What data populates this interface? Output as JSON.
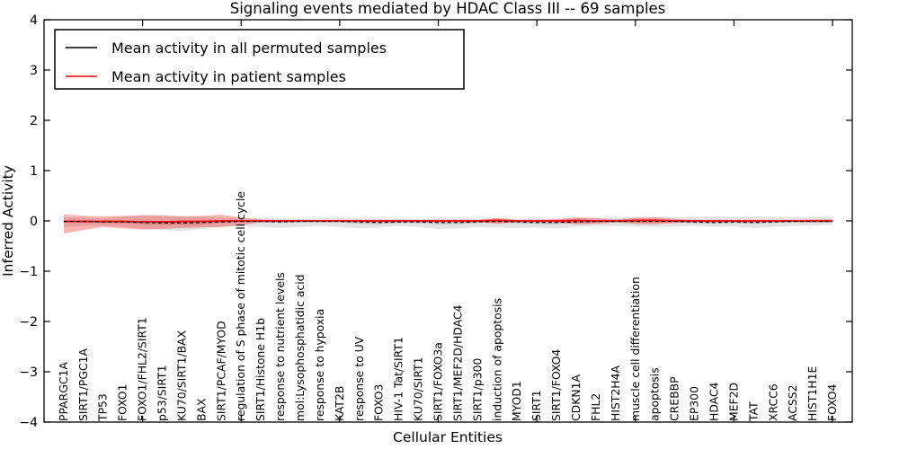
{
  "figure": {
    "title": "Signaling events mediated by HDAC Class III -- 69 samples",
    "xlabel": "Cellular Entities",
    "ylabel": "Inferred Activity"
  },
  "chart_data": {
    "type": "line",
    "title": "Signaling events mediated by HDAC Class III -- 69 samples",
    "xlabel": "Cellular Entities",
    "ylabel": "Inferred Activity",
    "ylim": [
      -4,
      4
    ],
    "grid": false,
    "legend_position": "upper left",
    "yticks": [
      {
        "v": 4,
        "label": "4"
      },
      {
        "v": 3,
        "label": "3"
      },
      {
        "v": 2,
        "label": "2"
      },
      {
        "v": 1,
        "label": "1"
      },
      {
        "v": 0,
        "label": "0"
      },
      {
        "v": -1,
        "label": "−1"
      },
      {
        "v": -2,
        "label": "−2"
      },
      {
        "v": -3,
        "label": "−3"
      },
      {
        "v": -4,
        "label": "−4"
      }
    ],
    "xticks": [
      5,
      10,
      15,
      20,
      25,
      30,
      35,
      40
    ],
    "categories": [
      "PPARGC1A",
      "SIRT1/PGC1A",
      "TP53",
      "FOXO1",
      "FOXO1/FHL2/SIRT1",
      "p53/SIRT1",
      "KU70/SIRT1/BAX",
      "BAX",
      "SIRT1/PCAF/MYOD",
      "regulation of S phase of mitotic cell cycle",
      "SIRT1/Histone H1b",
      "response to nutrient levels",
      "mol:Lysophosphatidic acid",
      "response to hypoxia",
      "KAT2B",
      "response to UV",
      "FOXO3",
      "HIV-1 Tat/SIRT1",
      "KU70/SIRT1",
      "SIRT1/FOXO3a",
      "SIRT1/MEF2D/HDAC4",
      "SIRT1/p300",
      "induction of apoptosis",
      "MYOD1",
      "SIRT1",
      "SIRT1/FOXO4",
      "CDKN1A",
      "FHL2",
      "HIST2H4A",
      "muscle cell differentiation",
      "apoptosis",
      "CREBBP",
      "EP300",
      "HDAC4",
      "MEF2D",
      "TAT",
      "XRCC6",
      "ACSS2",
      "HIST1H1E",
      "FOXO4"
    ],
    "series": [
      {
        "name": "Mean activity in all permuted samples",
        "color": "#000000",
        "style": "dashed",
        "width": 1.2,
        "values": [
          -0.01,
          -0.01,
          -0.02,
          -0.02,
          -0.03,
          -0.04,
          -0.04,
          -0.03,
          -0.02,
          -0.01,
          -0.01,
          -0.02,
          -0.01,
          -0.01,
          -0.01,
          -0.02,
          -0.03,
          -0.02,
          -0.02,
          -0.03,
          -0.03,
          -0.02,
          -0.01,
          -0.02,
          -0.03,
          -0.03,
          -0.02,
          -0.01,
          -0.01,
          -0.01,
          -0.01,
          -0.01,
          -0.02,
          -0.03,
          -0.02,
          -0.03,
          -0.02,
          -0.01,
          -0.01,
          -0.01
        ]
      },
      {
        "name": "Mean activity in patient samples",
        "color": "#ff0000",
        "style": "solid",
        "width": 1.8,
        "values": [
          -0.01,
          -0.01,
          -0.01,
          -0.01,
          -0.02,
          -0.02,
          -0.01,
          -0.01,
          0,
          0,
          0,
          0,
          0,
          0,
          0,
          0,
          0,
          0,
          0,
          0,
          0,
          0,
          0.01,
          0,
          0,
          0,
          0.01,
          0,
          0,
          0.01,
          0.01,
          0,
          0,
          0,
          0,
          0,
          0,
          0,
          0,
          0
        ]
      }
    ],
    "bands": [
      {
        "name": "permuted-samples-outer-band",
        "color": "#000000",
        "opacity": 0.11,
        "upper": [
          0.07,
          0.06,
          0.05,
          0.08,
          0.12,
          0.12,
          0.1,
          0.08,
          0.06,
          0.05,
          0.06,
          0.05,
          0.04,
          0.05,
          0.06,
          0.05,
          0.04,
          0.05,
          0.04,
          0.05,
          0.05,
          0.04,
          0.05,
          0.04,
          0.05,
          0.05,
          0.06,
          0.05,
          0.06,
          0.08,
          0.08,
          0.07,
          0.08,
          0.09,
          0.08,
          0.09,
          0.08,
          0.07,
          0.08,
          0.07
        ],
        "lower": [
          -0.12,
          -0.1,
          -0.09,
          -0.12,
          -0.16,
          -0.18,
          -0.2,
          -0.16,
          -0.12,
          -0.1,
          -0.12,
          -0.14,
          -0.12,
          -0.1,
          -0.12,
          -0.15,
          -0.13,
          -0.1,
          -0.12,
          -0.16,
          -0.15,
          -0.12,
          -0.13,
          -0.14,
          -0.13,
          -0.15,
          -0.12,
          -0.1,
          -0.1,
          -0.11,
          -0.12,
          -0.11,
          -0.1,
          -0.12,
          -0.11,
          -0.14,
          -0.12,
          -0.1,
          -0.09,
          -0.08
        ]
      },
      {
        "name": "permuted-samples-inner-band",
        "color": "#000000",
        "opacity": 0.14,
        "upper": [
          0.01,
          0.01,
          0,
          0.01,
          0.01,
          0,
          0,
          0.01,
          0,
          0.01,
          0.01,
          0,
          0.01,
          0.01,
          0.01,
          0.01,
          0,
          0.01,
          0.01,
          0,
          0,
          0,
          0.01,
          0,
          0,
          0,
          0,
          0.01,
          0.01,
          0.01,
          0.01,
          0.01,
          0,
          0,
          0,
          0,
          0,
          0.01,
          0.01,
          0.01
        ],
        "lower": [
          -0.03,
          -0.03,
          -0.04,
          -0.05,
          -0.07,
          -0.08,
          -0.08,
          -0.07,
          -0.04,
          -0.03,
          -0.03,
          -0.04,
          -0.03,
          -0.03,
          -0.03,
          -0.055,
          -0.065,
          -0.04,
          -0.045,
          -0.065,
          -0.065,
          -0.04,
          -0.03,
          -0.045,
          -0.065,
          -0.065,
          -0.04,
          -0.03,
          -0.03,
          -0.03,
          -0.03,
          -0.03,
          -0.045,
          -0.06,
          -0.045,
          -0.06,
          -0.04,
          -0.03,
          -0.03,
          -0.03
        ]
      },
      {
        "name": "patient-samples-band",
        "color": "#ff0000",
        "opacity": 0.3,
        "upper": [
          0.13,
          0.1,
          0.09,
          0.1,
          0.11,
          0.1,
          0.09,
          0.1,
          0.12,
          0.07,
          0.03,
          0.02,
          0.02,
          0.02,
          0.02,
          0.02,
          0.02,
          0.02,
          0.02,
          0.02,
          0.02,
          0.02,
          0.06,
          0.02,
          0.02,
          0.03,
          0.07,
          0.06,
          0.03,
          0.06,
          0.07,
          0.04,
          0.02,
          0.02,
          0.02,
          0.02,
          0.02,
          0.02,
          0.03,
          0.03
        ],
        "lower": [
          -0.25,
          -0.18,
          -0.12,
          -0.15,
          -0.17,
          -0.16,
          -0.14,
          -0.13,
          -0.12,
          -0.08,
          -0.03,
          -0.02,
          -0.02,
          -0.02,
          -0.02,
          -0.02,
          -0.02,
          -0.02,
          -0.02,
          -0.02,
          -0.02,
          -0.02,
          -0.06,
          -0.02,
          -0.02,
          -0.03,
          -0.07,
          -0.06,
          -0.03,
          -0.06,
          -0.07,
          -0.04,
          -0.02,
          -0.02,
          -0.02,
          -0.02,
          -0.02,
          -0.02,
          -0.03,
          -0.03
        ]
      }
    ]
  }
}
